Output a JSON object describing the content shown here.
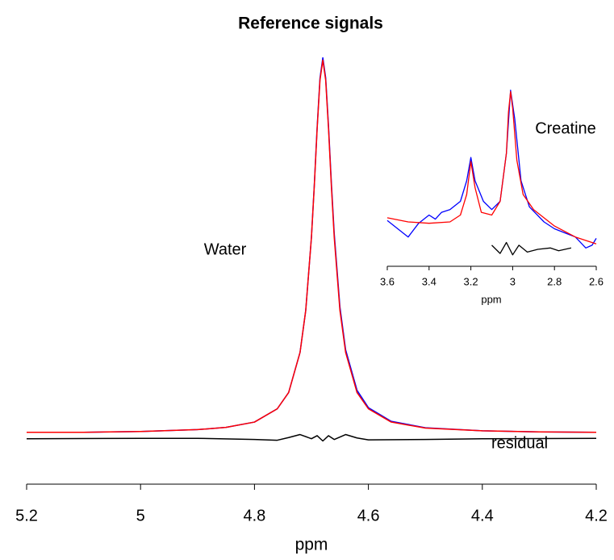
{
  "chart_data": [
    {
      "type": "line",
      "title": "Reference signals",
      "xlabel": "ppm",
      "xlim": [
        5.2,
        4.2
      ],
      "ylim": [
        -12,
        105
      ],
      "xticks": [
        5.2,
        5,
        4.8,
        4.6,
        4.4,
        4.2
      ],
      "annotations": [
        "Water",
        "residual"
      ],
      "series": [
        {
          "color": "#0000ff",
          "x": [
            5.2,
            5.1,
            5.0,
            4.9,
            4.85,
            4.8,
            4.76,
            4.74,
            4.72,
            4.71,
            4.7,
            4.695,
            4.69,
            4.685,
            4.68,
            4.675,
            4.67,
            4.665,
            4.66,
            4.65,
            4.64,
            4.62,
            4.6,
            4.56,
            4.5,
            4.4,
            4.3,
            4.2
          ],
          "values": [
            1.7,
            1.7,
            1.9,
            2.4,
            3.0,
            4.4,
            7.9,
            12.2,
            22.8,
            33.9,
            53.2,
            66.9,
            82.2,
            95.2,
            100.6,
            95.3,
            82.5,
            67.5,
            54.2,
            34.8,
            23.5,
            12.8,
            8.2,
            4.6,
            2.9,
            2.1,
            1.8,
            1.7
          ]
        },
        {
          "color": "#ff0000",
          "x": [
            5.2,
            5.1,
            5.0,
            4.9,
            4.85,
            4.8,
            4.76,
            4.74,
            4.72,
            4.71,
            4.7,
            4.695,
            4.69,
            4.685,
            4.68,
            4.675,
            4.67,
            4.665,
            4.66,
            4.65,
            4.64,
            4.62,
            4.6,
            4.56,
            4.5,
            4.4,
            4.3,
            4.2
          ],
          "values": [
            1.7,
            1.7,
            1.9,
            2.4,
            3.0,
            4.4,
            7.9,
            12.2,
            22.8,
            33.9,
            53.2,
            66.7,
            81.8,
            94.7,
            100,
            94.7,
            81.8,
            66.7,
            53.2,
            33.9,
            22.8,
            12.2,
            7.9,
            4.4,
            2.8,
            2.1,
            1.8,
            1.7
          ]
        },
        {
          "color": "#000000",
          "x": [
            5.2,
            5.0,
            4.9,
            4.8,
            4.76,
            4.74,
            4.72,
            4.7,
            4.69,
            4.68,
            4.67,
            4.66,
            4.64,
            4.62,
            4.6,
            4.5,
            4.4,
            4.2
          ],
          "values": [
            0,
            0.1,
            0.1,
            -0.2,
            -0.4,
            0.3,
            1.1,
            0,
            0.8,
            -0.6,
            0.8,
            -0.2,
            1.1,
            0.2,
            -0.3,
            -0.2,
            0,
            0.1
          ]
        }
      ]
    },
    {
      "type": "line",
      "xlabel": "ppm",
      "xlim": [
        3.6,
        2.6
      ],
      "ylim": [
        -25,
        105
      ],
      "xticks": [
        3.6,
        3.4,
        3.2,
        3,
        2.8,
        2.6
      ],
      "annotations": [
        "Creatine"
      ],
      "series": [
        {
          "color": "#0000ff",
          "x": [
            3.6,
            3.55,
            3.5,
            3.45,
            3.4,
            3.37,
            3.34,
            3.3,
            3.25,
            3.22,
            3.2,
            3.18,
            3.14,
            3.1,
            3.06,
            3.03,
            3.01,
            2.99,
            2.96,
            2.92,
            2.85,
            2.8,
            2.75,
            2.7,
            2.65,
            2.62,
            2.6
          ],
          "values": [
            6,
            0,
            -6,
            4,
            10,
            7,
            12,
            14,
            20,
            35,
            52,
            35,
            20,
            14,
            20,
            55,
            101,
            80,
            35,
            16,
            5,
            0,
            -3,
            -6,
            -14,
            -12,
            -7
          ]
        },
        {
          "color": "#ff0000",
          "x": [
            3.6,
            3.5,
            3.4,
            3.3,
            3.25,
            3.22,
            3.2,
            3.18,
            3.15,
            3.1,
            3.06,
            3.03,
            3.02,
            3.01,
            3.0,
            2.98,
            2.95,
            2.9,
            2.8,
            2.7,
            2.6
          ],
          "values": [
            8,
            5,
            4,
            5,
            10,
            25,
            49,
            30,
            12,
            10,
            20,
            55,
            85,
            100,
            88,
            50,
            25,
            14,
            2,
            -6,
            -11
          ]
        },
        {
          "color": "#000000",
          "x": [
            3.1,
            3.06,
            3.03,
            3.0,
            2.97,
            2.93,
            2.88,
            2.82,
            2.78,
            2.72
          ],
          "values": [
            -12,
            -18,
            -10,
            -19,
            -12,
            -17,
            -15,
            -14,
            -16,
            -14
          ]
        }
      ]
    }
  ]
}
